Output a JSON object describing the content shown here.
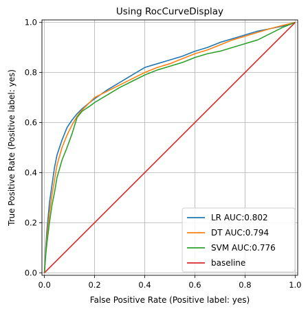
{
  "chart_data": {
    "type": "line",
    "title": "Using RocCurveDisplay",
    "xlabel": "False Positive Rate (Positive label: yes)",
    "ylabel": "True Positive Rate (Positive label: yes)",
    "xlim": [
      -0.01,
      1.01
    ],
    "ylim": [
      -0.01,
      1.01
    ],
    "xticks": [
      0.0,
      0.2,
      0.4,
      0.6,
      0.8,
      1.0
    ],
    "yticks": [
      0.0,
      0.2,
      0.4,
      0.6,
      0.8,
      1.0
    ],
    "xtick_labels": [
      "0.0",
      "0.2",
      "0.4",
      "0.6",
      "0.8",
      "1.0"
    ],
    "ytick_labels": [
      "0.0",
      "0.2",
      "0.4",
      "0.6",
      "0.8",
      "1.0"
    ],
    "grid": true,
    "legend_position": "lower-right",
    "series": [
      {
        "name": "LR AUC:0.802",
        "color": "#1f77b4",
        "x": [
          0.0,
          0.005,
          0.01,
          0.02,
          0.03,
          0.04,
          0.05,
          0.07,
          0.09,
          0.11,
          0.13,
          0.15,
          0.18,
          0.2,
          0.25,
          0.3,
          0.35,
          0.4,
          0.45,
          0.5,
          0.55,
          0.6,
          0.65,
          0.7,
          0.75,
          0.8,
          0.85,
          0.9,
          0.95,
          1.0
        ],
        "y": [
          0.0,
          0.1,
          0.17,
          0.28,
          0.35,
          0.42,
          0.47,
          0.53,
          0.58,
          0.61,
          0.635,
          0.655,
          0.68,
          0.695,
          0.73,
          0.76,
          0.79,
          0.82,
          0.835,
          0.85,
          0.865,
          0.885,
          0.9,
          0.92,
          0.935,
          0.95,
          0.965,
          0.975,
          0.985,
          1.0
        ]
      },
      {
        "name": "DT AUC:0.794",
        "color": "#ff7f0e",
        "x": [
          0.0,
          0.005,
          0.01,
          0.02,
          0.03,
          0.04,
          0.05,
          0.07,
          0.09,
          0.11,
          0.13,
          0.15,
          0.18,
          0.2,
          0.25,
          0.3,
          0.35,
          0.4,
          0.45,
          0.5,
          0.55,
          0.6,
          0.65,
          0.7,
          0.75,
          0.8,
          0.85,
          0.9,
          0.95,
          1.0
        ],
        "y": [
          0.0,
          0.08,
          0.14,
          0.24,
          0.31,
          0.37,
          0.43,
          0.5,
          0.55,
          0.59,
          0.625,
          0.65,
          0.68,
          0.7,
          0.725,
          0.75,
          0.775,
          0.8,
          0.82,
          0.835,
          0.855,
          0.875,
          0.89,
          0.91,
          0.93,
          0.945,
          0.96,
          0.975,
          0.988,
          1.0
        ]
      },
      {
        "name": "SVM AUC:0.776",
        "color": "#2ca02c",
        "x": [
          0.0,
          0.005,
          0.01,
          0.02,
          0.03,
          0.04,
          0.05,
          0.07,
          0.09,
          0.11,
          0.13,
          0.15,
          0.18,
          0.2,
          0.25,
          0.3,
          0.35,
          0.4,
          0.45,
          0.5,
          0.55,
          0.6,
          0.65,
          0.7,
          0.75,
          0.8,
          0.85,
          0.9,
          0.95,
          1.0
        ],
        "y": [
          0.0,
          0.07,
          0.12,
          0.2,
          0.27,
          0.32,
          0.38,
          0.45,
          0.5,
          0.555,
          0.62,
          0.645,
          0.665,
          0.68,
          0.71,
          0.74,
          0.765,
          0.79,
          0.81,
          0.825,
          0.84,
          0.86,
          0.875,
          0.885,
          0.9,
          0.915,
          0.93,
          0.955,
          0.98,
          1.0
        ]
      },
      {
        "name": "baseline",
        "color": "#d62728",
        "x": [
          0.0,
          1.0
        ],
        "y": [
          0.0,
          1.0
        ]
      }
    ]
  }
}
